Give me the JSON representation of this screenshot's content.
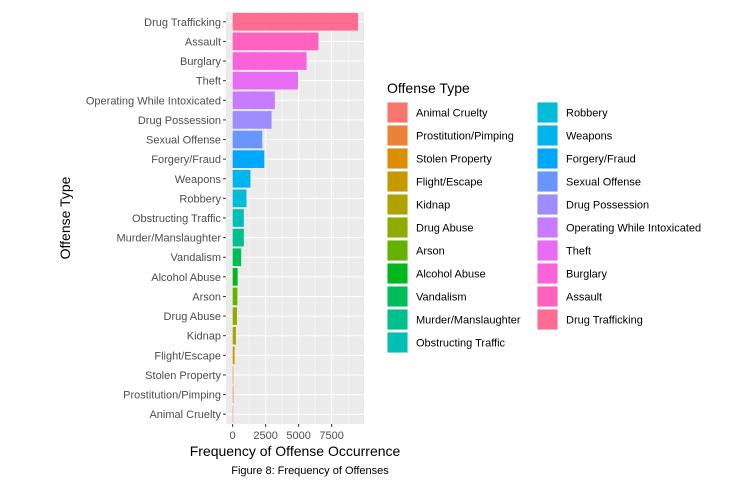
{
  "chart_data": {
    "type": "bar",
    "orientation": "horizontal",
    "categories": [
      "Drug Trafficking",
      "Assault",
      "Burglary",
      "Theft",
      "Operating While Intoxicated",
      "Drug Possession",
      "Sexual Offense",
      "Forgery/Fraud",
      "Weapons",
      "Robbery",
      "Obstructing Traffic",
      "Murder/Manslaughter",
      "Vandalism",
      "Alcohol Abuse",
      "Arson",
      "Drug Abuse",
      "Kidnap",
      "Flight/Escape",
      "Stolen Property",
      "Prostitution/Pimping",
      "Animal Cruelty"
    ],
    "values": [
      9500,
      6500,
      5600,
      4950,
      3200,
      2950,
      2250,
      2400,
      1350,
      1050,
      850,
      850,
      650,
      380,
      360,
      330,
      250,
      150,
      50,
      60,
      40
    ],
    "xlabel": "Frequency of Offense Occurrence",
    "ylabel": "Offense Type",
    "caption": "Figure 8: Frequency of Offenses",
    "xlim": [
      -500,
      9950
    ],
    "xticks": [
      0,
      2500,
      5000,
      7500
    ],
    "xtick_labels": [
      "0",
      "2500",
      "5000",
      "7500"
    ],
    "grid": true,
    "legend": {
      "title": "Offense Type",
      "placement": "right",
      "columns": 2,
      "entries": [
        "Animal Cruelty",
        "Prostitution/Pimping",
        "Stolen Property",
        "Flight/Escape",
        "Kidnap",
        "Drug Abuse",
        "Arson",
        "Alcohol Abuse",
        "Vandalism",
        "Murder/Manslaughter",
        "Obstructing Traffic",
        "Robbery",
        "Weapons",
        "Forgery/Fraud",
        "Sexual Offense",
        "Drug Possession",
        "Operating While Intoxicated",
        "Theft",
        "Burglary",
        "Assault",
        "Drug Trafficking"
      ]
    },
    "colors": {
      "Animal Cruelty": "#F8766D",
      "Prostitution/Pimping": "#EC8239",
      "Stolen Property": "#DB8E00",
      "Flight/Escape": "#C79800",
      "Kidnap": "#AEA200",
      "Drug Abuse": "#8FAA00",
      "Arson": "#64B200",
      "Alcohol Abuse": "#00B81B",
      "Vandalism": "#00BD5C",
      "Murder/Manslaughter": "#00C08D",
      "Obstructing Traffic": "#00BFB7",
      "Robbery": "#00BCD6",
      "Weapons": "#00B5EE",
      "Forgery/Fraud": "#00A7FF",
      "Sexual Offense": "#6995FF",
      "Drug Possession": "#9F8CFF",
      "Operating While Intoxicated": "#C77CFF",
      "Theft": "#E76BF3",
      "Burglary": "#FA62DB",
      "Assault": "#FF62BC",
      "Drug Trafficking": "#FF6C91"
    },
    "panel_background": "#EBEBEB",
    "grid_color": "#FFFFFF"
  }
}
